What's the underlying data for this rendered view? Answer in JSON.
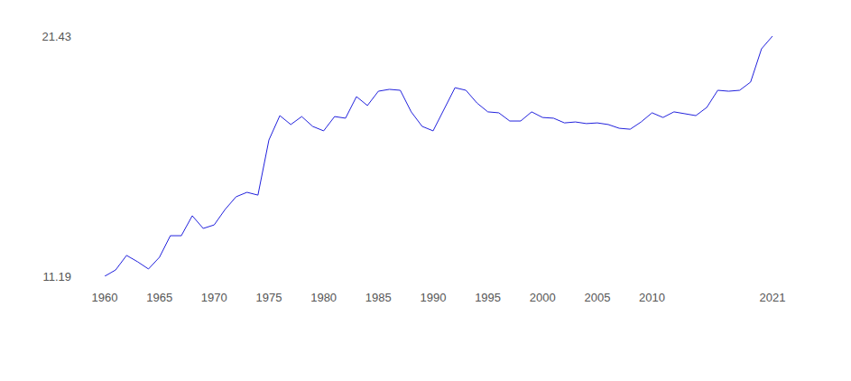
{
  "chart_data": {
    "type": "line",
    "x": [
      1960,
      1961,
      1962,
      1963,
      1964,
      1965,
      1966,
      1967,
      1968,
      1969,
      1970,
      1971,
      1972,
      1973,
      1974,
      1975,
      1976,
      1977,
      1978,
      1979,
      1980,
      1981,
      1982,
      1983,
      1984,
      1985,
      1986,
      1987,
      1988,
      1989,
      1990,
      1991,
      1992,
      1993,
      1994,
      1995,
      1996,
      1997,
      1998,
      1999,
      2000,
      2001,
      2002,
      2003,
      2004,
      2005,
      2006,
      2007,
      2008,
      2009,
      2010,
      2011,
      2012,
      2013,
      2014,
      2015,
      2016,
      2017,
      2018,
      2019,
      2020,
      2021
    ],
    "values": [
      11.19,
      11.46,
      12.08,
      11.81,
      11.5,
      12.0,
      12.92,
      12.92,
      13.77,
      13.23,
      13.38,
      14.04,
      14.58,
      14.77,
      14.65,
      17.0,
      18.04,
      17.66,
      18.0,
      17.58,
      17.39,
      18.0,
      17.93,
      18.85,
      18.47,
      19.08,
      19.16,
      19.12,
      18.2,
      17.58,
      17.39,
      18.31,
      19.23,
      19.12,
      18.58,
      18.2,
      18.16,
      17.81,
      17.81,
      18.2,
      17.96,
      17.93,
      17.73,
      17.77,
      17.7,
      17.73,
      17.66,
      17.5,
      17.46,
      17.77,
      18.16,
      17.96,
      18.2,
      18.12,
      18.04,
      18.39,
      19.12,
      19.08,
      19.12,
      19.47,
      20.89,
      21.43
    ],
    "color": "#2222dd",
    "xlim": [
      1960,
      2021
    ],
    "xticks": [
      1960,
      1965,
      1970,
      1975,
      1980,
      1985,
      1990,
      1995,
      2000,
      2005,
      2010,
      2021
    ],
    "ylim": [
      11.19,
      21.43
    ],
    "yticks": [
      11.19,
      21.43
    ],
    "grid": true
  }
}
